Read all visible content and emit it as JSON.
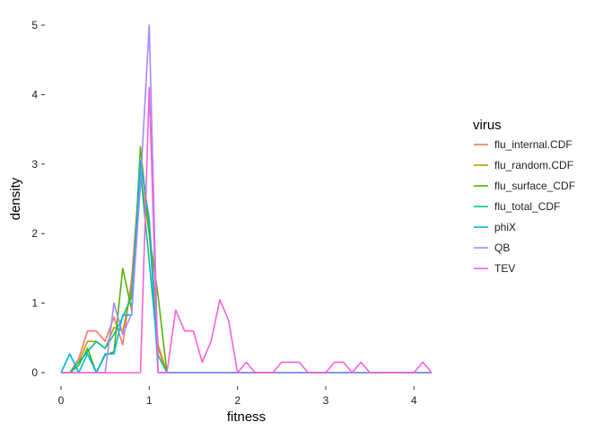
{
  "chart_data": {
    "type": "line",
    "xlabel": "fitness",
    "ylabel": "density",
    "xlim": [
      0,
      4.2
    ],
    "ylim": [
      0,
      5
    ],
    "xticks": [
      0,
      1,
      2,
      3,
      4
    ],
    "yticks": [
      0,
      1,
      2,
      3,
      4,
      5
    ],
    "grid": false,
    "legend": {
      "title": "virus",
      "position": "right"
    },
    "series": [
      {
        "name": "flu_internal.CDF",
        "color": "#F8766D",
        "points": [
          [
            0,
            0
          ],
          [
            0.1,
            0
          ],
          [
            0.2,
            0.2
          ],
          [
            0.3,
            0.6
          ],
          [
            0.4,
            0.6
          ],
          [
            0.5,
            0.45
          ],
          [
            0.6,
            0.8
          ],
          [
            0.7,
            0.4
          ],
          [
            0.8,
            1.35
          ],
          [
            0.9,
            3.0
          ],
          [
            1.0,
            2.2
          ],
          [
            1.1,
            0.4
          ],
          [
            1.2,
            0
          ],
          [
            4.2,
            0
          ]
        ]
      },
      {
        "name": "flu_random.CDF",
        "color": "#C49A00",
        "points": [
          [
            0,
            0
          ],
          [
            0.1,
            0
          ],
          [
            0.2,
            0.15
          ],
          [
            0.3,
            0.45
          ],
          [
            0.4,
            0.45
          ],
          [
            0.5,
            0.35
          ],
          [
            0.6,
            0.65
          ],
          [
            0.7,
            0.6
          ],
          [
            0.8,
            1.2
          ],
          [
            0.9,
            2.85
          ],
          [
            1.0,
            2.0
          ],
          [
            1.1,
            0.35
          ],
          [
            1.2,
            0
          ],
          [
            4.2,
            0
          ]
        ]
      },
      {
        "name": "flu_surface_CDF",
        "color": "#53B400",
        "points": [
          [
            0,
            0
          ],
          [
            0.1,
            0
          ],
          [
            0.2,
            0.1
          ],
          [
            0.3,
            0.35
          ],
          [
            0.4,
            0
          ],
          [
            0.5,
            0.25
          ],
          [
            0.6,
            0.3
          ],
          [
            0.7,
            1.5
          ],
          [
            0.8,
            0.9
          ],
          [
            0.9,
            3.25
          ],
          [
            1.0,
            2.0
          ],
          [
            1.1,
            1.1
          ],
          [
            1.2,
            0
          ],
          [
            4.2,
            0
          ]
        ]
      },
      {
        "name": "flu_total_CDF",
        "color": "#00C094",
        "points": [
          [
            0,
            0
          ],
          [
            0.1,
            0
          ],
          [
            0.2,
            0.15
          ],
          [
            0.3,
            0.3
          ],
          [
            0.4,
            0.45
          ],
          [
            0.5,
            0.35
          ],
          [
            0.6,
            0.55
          ],
          [
            0.7,
            0.8
          ],
          [
            0.8,
            1.1
          ],
          [
            0.9,
            2.9
          ],
          [
            1.0,
            1.6
          ],
          [
            1.1,
            0.25
          ],
          [
            1.2,
            0
          ],
          [
            4.2,
            0
          ]
        ]
      },
      {
        "name": "phiX",
        "color": "#00B6EB",
        "points": [
          [
            0,
            0
          ],
          [
            0.1,
            0.27
          ],
          [
            0.2,
            0
          ],
          [
            0.3,
            0.27
          ],
          [
            0.4,
            0
          ],
          [
            0.5,
            0.27
          ],
          [
            0.6,
            0.27
          ],
          [
            0.7,
            0.83
          ],
          [
            0.8,
            0.83
          ],
          [
            0.9,
            3.05
          ],
          [
            1.0,
            2.2
          ],
          [
            1.1,
            0
          ],
          [
            4.2,
            0
          ]
        ]
      },
      {
        "name": "QB",
        "color": "#A58AFF",
        "points": [
          [
            0,
            0
          ],
          [
            0.5,
            0
          ],
          [
            0.6,
            1.0
          ],
          [
            0.7,
            0.55
          ],
          [
            0.8,
            0.85
          ],
          [
            0.9,
            2.7
          ],
          [
            1.0,
            5.0
          ],
          [
            1.1,
            0
          ],
          [
            4.2,
            0
          ]
        ]
      },
      {
        "name": "TEV",
        "color": "#FB61D7",
        "points": [
          [
            0,
            0
          ],
          [
            0.9,
            0
          ],
          [
            1.0,
            4.1
          ],
          [
            1.1,
            0
          ],
          [
            1.2,
            0
          ],
          [
            1.3,
            0.9
          ],
          [
            1.4,
            0.6
          ],
          [
            1.5,
            0.6
          ],
          [
            1.6,
            0.15
          ],
          [
            1.7,
            0.45
          ],
          [
            1.8,
            1.05
          ],
          [
            1.9,
            0.75
          ],
          [
            2.0,
            0
          ],
          [
            2.1,
            0.15
          ],
          [
            2.2,
            0
          ],
          [
            2.3,
            0
          ],
          [
            2.4,
            0
          ],
          [
            2.5,
            0.15
          ],
          [
            2.6,
            0.15
          ],
          [
            2.7,
            0.15
          ],
          [
            2.8,
            0
          ],
          [
            2.9,
            0
          ],
          [
            3.0,
            0
          ],
          [
            3.1,
            0.15
          ],
          [
            3.2,
            0.15
          ],
          [
            3.3,
            0
          ],
          [
            3.4,
            0.15
          ],
          [
            3.5,
            0
          ],
          [
            4.0,
            0
          ],
          [
            4.1,
            0.15
          ],
          [
            4.2,
            0
          ]
        ]
      }
    ]
  }
}
